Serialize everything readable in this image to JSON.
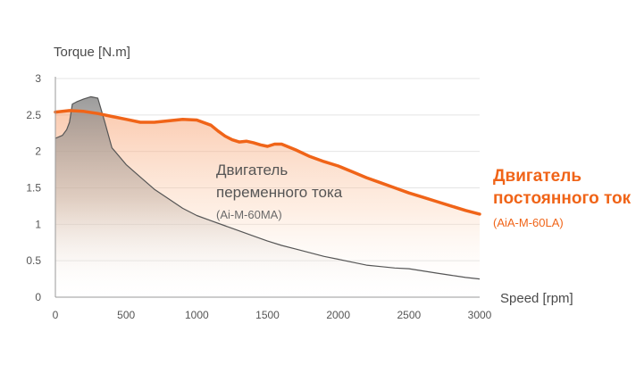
{
  "chart_data": {
    "type": "area",
    "xlabel": "Speed [rpm]",
    "ylabel": "Torque [N.m]",
    "xlim": [
      0,
      3000
    ],
    "ylim": [
      0,
      3
    ],
    "x_ticks": [
      0,
      500,
      1000,
      1500,
      2000,
      2500,
      3000
    ],
    "y_ticks": [
      0,
      0.5,
      1,
      1.5,
      2,
      2.5,
      3
    ],
    "grid": "horizontal",
    "series": [
      {
        "label_line1": "Двигатель",
        "label_line2": "постоянного ток",
        "model": "(AiA-M-60LA)",
        "color": "#f06418",
        "x": [
          0,
          100,
          200,
          300,
          400,
          500,
          600,
          700,
          800,
          900,
          1000,
          1100,
          1150,
          1200,
          1250,
          1300,
          1350,
          1400,
          1450,
          1500,
          1550,
          1600,
          1700,
          1800,
          1900,
          2000,
          2100,
          2200,
          2300,
          2400,
          2500,
          2600,
          2700,
          2800,
          2900,
          3000
        ],
        "y": [
          2.54,
          2.56,
          2.55,
          2.52,
          2.48,
          2.44,
          2.4,
          2.4,
          2.42,
          2.44,
          2.43,
          2.36,
          2.28,
          2.21,
          2.16,
          2.13,
          2.14,
          2.12,
          2.09,
          2.07,
          2.1,
          2.1,
          2.02,
          1.93,
          1.86,
          1.8,
          1.72,
          1.64,
          1.57,
          1.5,
          1.43,
          1.37,
          1.31,
          1.25,
          1.19,
          1.14
        ]
      },
      {
        "label_line1": "Двигатель",
        "label_line2": "переменного тока",
        "model": "(Ai-M-60MA)",
        "color": "#555555",
        "x": [
          0,
          50,
          80,
          100,
          120,
          150,
          200,
          250,
          300,
          350,
          400,
          500,
          600,
          700,
          800,
          900,
          1000,
          1100,
          1200,
          1300,
          1400,
          1500,
          1600,
          1700,
          1800,
          1900,
          2000,
          2100,
          2200,
          2300,
          2400,
          2500,
          2600,
          2700,
          2800,
          2900,
          3000
        ],
        "y": [
          2.18,
          2.22,
          2.3,
          2.4,
          2.65,
          2.68,
          2.72,
          2.75,
          2.73,
          2.4,
          2.05,
          1.82,
          1.65,
          1.48,
          1.35,
          1.22,
          1.12,
          1.05,
          0.98,
          0.91,
          0.84,
          0.77,
          0.71,
          0.66,
          0.61,
          0.56,
          0.52,
          0.48,
          0.44,
          0.42,
          0.4,
          0.39,
          0.36,
          0.33,
          0.3,
          0.27,
          0.25
        ]
      }
    ]
  }
}
